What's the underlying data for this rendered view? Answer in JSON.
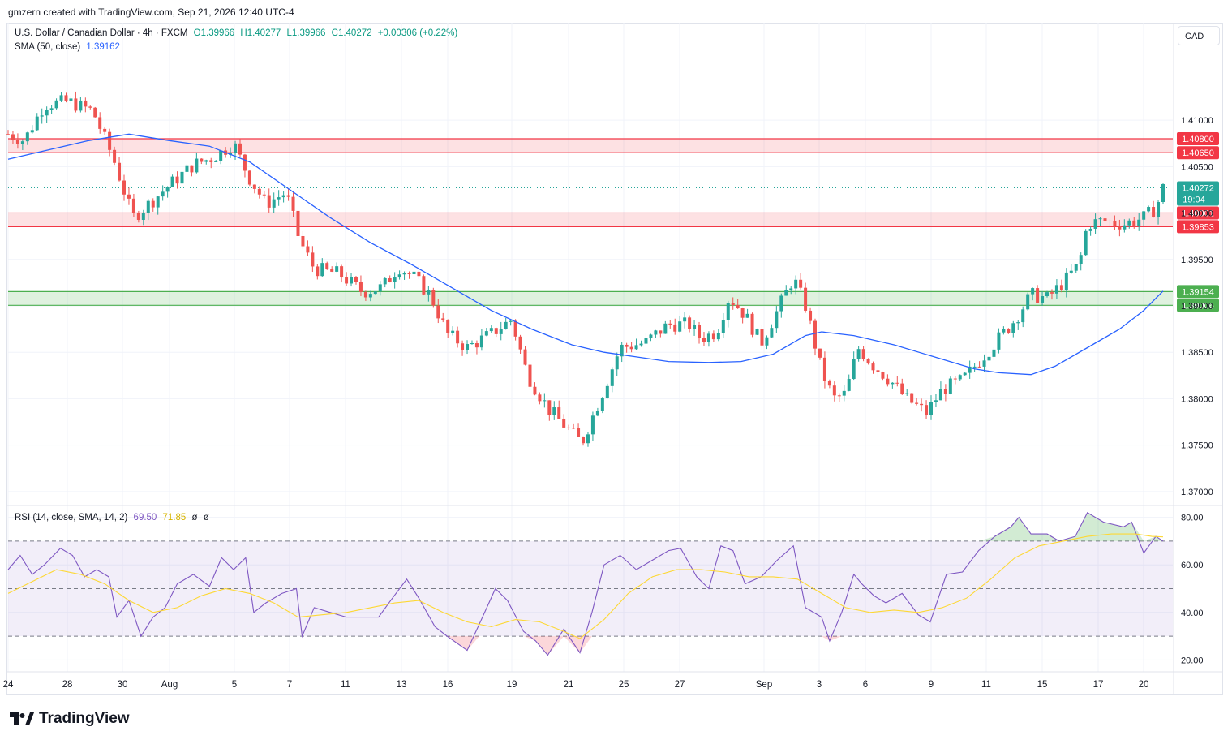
{
  "header": {
    "creator_text": "gmzern created with TradingView.com, Sep 21, 2026 12:40 UTC-4"
  },
  "legend": {
    "symbol": "U.S. Dollar / Canadian Dollar · 4h · FXCM",
    "open": "O1.39966",
    "high": "H1.40277",
    "low": "L1.39966",
    "close": "C1.40272",
    "change": "+0.00306 (+0.22%)",
    "sma_label": "SMA (50, close)",
    "sma_value": "1.39162",
    "rsi_label": "RSI (14, close, SMA, 14, 2)",
    "rsi_value": "69.50",
    "rsi_sma_value": "71.85",
    "rsi_extra1": "ø",
    "rsi_extra2": "ø"
  },
  "currency_button": "CAD",
  "brand": {
    "name": "TradingView",
    "logo": "tradingview-logo-icon"
  },
  "colors": {
    "up": "#26a69a",
    "down": "#ef5350",
    "sma": "#2962ff",
    "rsi": "#7e57c2",
    "rsi_sma": "#fdd835",
    "resistance": "#f23645",
    "support": "#4caf50"
  },
  "chart_data": {
    "type": "candlestick",
    "symbol": "USDCAD",
    "timeframe": "4h",
    "price_axis": {
      "ylim": [
        1.3685,
        1.4205
      ],
      "ticks": [
        "1.41000",
        "1.40500",
        "1.40000",
        "1.39500",
        "1.39000",
        "1.38500",
        "1.38000",
        "1.37500",
        "1.37000"
      ]
    },
    "zones": [
      {
        "kind": "resistance",
        "from": 1.4065,
        "to": 1.408,
        "labels": [
          "1.40800",
          "1.40650"
        ]
      },
      {
        "kind": "resistance",
        "from": 1.39853,
        "to": 1.40001,
        "labels": [
          "1.40001",
          "1.39853"
        ]
      },
      {
        "kind": "support",
        "from": 1.39006,
        "to": 1.39154,
        "labels": [
          "1.39154",
          "1.39006"
        ]
      }
    ],
    "last_price": {
      "value": 1.40272,
      "label": "1.40272",
      "countdown": "19:04"
    },
    "x_axis_labels": [
      "24",
      "28",
      "30",
      "Aug",
      "5",
      "7",
      "11",
      "13",
      "16",
      "19",
      "21",
      "25",
      "27",
      "Sep",
      "3",
      "6",
      "9",
      "11",
      "15",
      "17",
      "20"
    ],
    "price_path": [
      [
        0,
        1.4085
      ],
      [
        20,
        1.4078
      ],
      [
        45,
        1.4117
      ],
      [
        75,
        1.412
      ],
      [
        105,
        1.411
      ],
      [
        130,
        1.406
      ],
      [
        155,
        1.3995
      ],
      [
        175,
        1.401
      ],
      [
        200,
        1.403
      ],
      [
        230,
        1.4052
      ],
      [
        255,
        1.406
      ],
      [
        280,
        1.4075
      ],
      [
        298,
        1.404
      ],
      [
        320,
        1.401
      ],
      [
        345,
        1.4022
      ],
      [
        362,
        1.397
      ],
      [
        380,
        1.394
      ],
      [
        410,
        1.3935
      ],
      [
        440,
        1.3915
      ],
      [
        465,
        1.392
      ],
      [
        485,
        1.3942
      ],
      [
        505,
        1.393
      ],
      [
        525,
        1.391
      ],
      [
        545,
        1.387
      ],
      [
        570,
        1.3855
      ],
      [
        600,
        1.387
      ],
      [
        625,
        1.3885
      ],
      [
        645,
        1.3825
      ],
      [
        670,
        1.379
      ],
      [
        690,
        1.3772
      ],
      [
        712,
        1.3752
      ],
      [
        735,
        1.38
      ],
      [
        760,
        1.3855
      ],
      [
        790,
        1.386
      ],
      [
        820,
        1.388
      ],
      [
        845,
        1.388
      ],
      [
        860,
        1.3865
      ],
      [
        880,
        1.3872
      ],
      [
        895,
        1.391
      ],
      [
        915,
        1.389
      ],
      [
        935,
        1.386
      ],
      [
        955,
        1.3895
      ],
      [
        975,
        1.393
      ],
      [
        990,
        1.39
      ],
      [
        1010,
        1.383
      ],
      [
        1025,
        1.38
      ],
      [
        1040,
        1.3805
      ],
      [
        1055,
        1.3855
      ],
      [
        1075,
        1.3835
      ],
      [
        1095,
        1.382
      ],
      [
        1115,
        1.38
      ],
      [
        1140,
        1.3785
      ],
      [
        1160,
        1.381
      ],
      [
        1185,
        1.382
      ],
      [
        1205,
        1.384
      ],
      [
        1225,
        1.386
      ],
      [
        1250,
        1.3885
      ],
      [
        1270,
        1.3912
      ],
      [
        1290,
        1.3908
      ],
      [
        1310,
        1.3925
      ],
      [
        1330,
        1.3945
      ],
      [
        1340,
        1.3988
      ],
      [
        1360,
        1.3992
      ],
      [
        1385,
        1.3988
      ],
      [
        1410,
        1.3995
      ],
      [
        1425,
        1.4005
      ],
      [
        1434,
        1.4027
      ]
    ],
    "sma_path": [
      [
        0,
        1.4058
      ],
      [
        50,
        1.4068
      ],
      [
        100,
        1.4078
      ],
      [
        150,
        1.4085
      ],
      [
        200,
        1.4078
      ],
      [
        250,
        1.4072
      ],
      [
        300,
        1.4055
      ],
      [
        350,
        1.4025
      ],
      [
        400,
        1.3995
      ],
      [
        450,
        1.3968
      ],
      [
        500,
        1.3945
      ],
      [
        550,
        1.392
      ],
      [
        600,
        1.3895
      ],
      [
        650,
        1.3875
      ],
      [
        700,
        1.3858
      ],
      [
        740,
        1.385
      ],
      [
        780,
        1.3845
      ],
      [
        820,
        1.384
      ],
      [
        870,
        1.3839
      ],
      [
        910,
        1.384
      ],
      [
        950,
        1.3848
      ],
      [
        990,
        1.3868
      ],
      [
        1010,
        1.3872
      ],
      [
        1050,
        1.3868
      ],
      [
        1100,
        1.3858
      ],
      [
        1150,
        1.3845
      ],
      [
        1200,
        1.3832
      ],
      [
        1230,
        1.3828
      ],
      [
        1270,
        1.3826
      ],
      [
        1300,
        1.3835
      ],
      [
        1340,
        1.3855
      ],
      [
        1380,
        1.3875
      ],
      [
        1410,
        1.3895
      ],
      [
        1434,
        1.3916
      ]
    ],
    "rsi": {
      "ylim": [
        15,
        85
      ],
      "ticks": [
        "80.00",
        "60.00",
        "40.00",
        "20.00"
      ],
      "levels": [
        70,
        50,
        30
      ],
      "path": [
        [
          0,
          58
        ],
        [
          15,
          64
        ],
        [
          30,
          56
        ],
        [
          45,
          60
        ],
        [
          65,
          67
        ],
        [
          80,
          64
        ],
        [
          95,
          55
        ],
        [
          110,
          58
        ],
        [
          125,
          55
        ],
        [
          135,
          38
        ],
        [
          150,
          45
        ],
        [
          165,
          30
        ],
        [
          180,
          38
        ],
        [
          195,
          42
        ],
        [
          210,
          52
        ],
        [
          230,
          56
        ],
        [
          250,
          51
        ],
        [
          265,
          63
        ],
        [
          280,
          58
        ],
        [
          295,
          63
        ],
        [
          305,
          40
        ],
        [
          320,
          44
        ],
        [
          340,
          48
        ],
        [
          358,
          50
        ],
        [
          365,
          30
        ],
        [
          380,
          42
        ],
        [
          400,
          40
        ],
        [
          420,
          38
        ],
        [
          440,
          38
        ],
        [
          460,
          38
        ],
        [
          475,
          45
        ],
        [
          495,
          54
        ],
        [
          510,
          46
        ],
        [
          530,
          34
        ],
        [
          545,
          30
        ],
        [
          570,
          24
        ],
        [
          585,
          35
        ],
        [
          605,
          50
        ],
        [
          620,
          45
        ],
        [
          640,
          32
        ],
        [
          655,
          28
        ],
        [
          670,
          22
        ],
        [
          690,
          33
        ],
        [
          710,
          23
        ],
        [
          725,
          40
        ],
        [
          740,
          60
        ],
        [
          760,
          64
        ],
        [
          780,
          58
        ],
        [
          800,
          62
        ],
        [
          820,
          66
        ],
        [
          835,
          67
        ],
        [
          855,
          55
        ],
        [
          870,
          50
        ],
        [
          885,
          68
        ],
        [
          900,
          66
        ],
        [
          915,
          52
        ],
        [
          935,
          55
        ],
        [
          955,
          62
        ],
        [
          975,
          68
        ],
        [
          990,
          42
        ],
        [
          1010,
          38
        ],
        [
          1020,
          28
        ],
        [
          1035,
          40
        ],
        [
          1050,
          56
        ],
        [
          1060,
          52
        ],
        [
          1075,
          47
        ],
        [
          1090,
          44
        ],
        [
          1110,
          48
        ],
        [
          1130,
          39
        ],
        [
          1145,
          36
        ],
        [
          1165,
          56
        ],
        [
          1185,
          57
        ],
        [
          1205,
          66
        ],
        [
          1225,
          72
        ],
        [
          1245,
          76
        ],
        [
          1255,
          80
        ],
        [
          1270,
          73
        ],
        [
          1290,
          73
        ],
        [
          1305,
          70
        ],
        [
          1325,
          72
        ],
        [
          1340,
          82
        ],
        [
          1360,
          78
        ],
        [
          1385,
          76
        ],
        [
          1395,
          78
        ],
        [
          1410,
          65
        ],
        [
          1425,
          72
        ],
        [
          1434,
          70
        ]
      ],
      "sma_path": [
        [
          0,
          48
        ],
        [
          30,
          53
        ],
        [
          60,
          58
        ],
        [
          90,
          56
        ],
        [
          120,
          52
        ],
        [
          150,
          45
        ],
        [
          180,
          40
        ],
        [
          210,
          42
        ],
        [
          240,
          47
        ],
        [
          270,
          50
        ],
        [
          300,
          48
        ],
        [
          330,
          44
        ],
        [
          360,
          38
        ],
        [
          390,
          39
        ],
        [
          420,
          40
        ],
        [
          450,
          42
        ],
        [
          480,
          44
        ],
        [
          510,
          45
        ],
        [
          540,
          40
        ],
        [
          570,
          36
        ],
        [
          600,
          34
        ],
        [
          630,
          37
        ],
        [
          660,
          36
        ],
        [
          690,
          32
        ],
        [
          710,
          29
        ],
        [
          740,
          37
        ],
        [
          770,
          48
        ],
        [
          800,
          55
        ],
        [
          830,
          58
        ],
        [
          860,
          58
        ],
        [
          890,
          57
        ],
        [
          920,
          55
        ],
        [
          950,
          55
        ],
        [
          980,
          54
        ],
        [
          1010,
          48
        ],
        [
          1040,
          42
        ],
        [
          1070,
          40
        ],
        [
          1100,
          41
        ],
        [
          1130,
          40
        ],
        [
          1160,
          42
        ],
        [
          1190,
          46
        ],
        [
          1220,
          54
        ],
        [
          1250,
          63
        ],
        [
          1280,
          68
        ],
        [
          1310,
          70
        ],
        [
          1340,
          72
        ],
        [
          1370,
          73
        ],
        [
          1400,
          73
        ],
        [
          1420,
          72
        ],
        [
          1434,
          71.8
        ]
      ]
    }
  }
}
